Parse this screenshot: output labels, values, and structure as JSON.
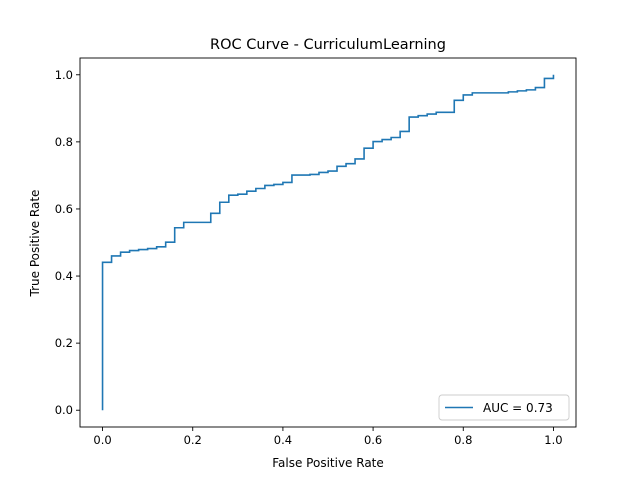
{
  "chart_data": {
    "type": "line",
    "title": "ROC Curve - CurriculumLearning",
    "xlabel": "False Positive Rate",
    "ylabel": "True Positive Rate",
    "xlim": [
      -0.05,
      1.05
    ],
    "ylim": [
      -0.05,
      1.05
    ],
    "xticks": [
      "0.0",
      "0.2",
      "0.4",
      "0.6",
      "0.8",
      "1.0"
    ],
    "yticks": [
      "0.0",
      "0.2",
      "0.4",
      "0.6",
      "0.8",
      "1.0"
    ],
    "grid": false,
    "legend_position": "lower-right",
    "series": [
      {
        "name": "AUC = 0.73",
        "color": "#1f77b4",
        "steps": [
          [
            0.0,
            0.441
          ],
          [
            0.02,
            0.46
          ],
          [
            0.04,
            0.471
          ],
          [
            0.06,
            0.476
          ],
          [
            0.08,
            0.479
          ],
          [
            0.1,
            0.482
          ],
          [
            0.12,
            0.487
          ],
          [
            0.14,
            0.501
          ],
          [
            0.16,
            0.544
          ],
          [
            0.18,
            0.56
          ],
          [
            0.24,
            0.587
          ],
          [
            0.26,
            0.62
          ],
          [
            0.28,
            0.641
          ],
          [
            0.3,
            0.644
          ],
          [
            0.32,
            0.653
          ],
          [
            0.34,
            0.661
          ],
          [
            0.36,
            0.67
          ],
          [
            0.38,
            0.673
          ],
          [
            0.4,
            0.679
          ],
          [
            0.42,
            0.701
          ],
          [
            0.46,
            0.703
          ],
          [
            0.48,
            0.709
          ],
          [
            0.5,
            0.713
          ],
          [
            0.52,
            0.727
          ],
          [
            0.54,
            0.735
          ],
          [
            0.56,
            0.749
          ],
          [
            0.58,
            0.781
          ],
          [
            0.6,
            0.801
          ],
          [
            0.62,
            0.807
          ],
          [
            0.64,
            0.813
          ],
          [
            0.66,
            0.831
          ],
          [
            0.68,
            0.874
          ],
          [
            0.7,
            0.878
          ],
          [
            0.72,
            0.883
          ],
          [
            0.74,
            0.888
          ],
          [
            0.78,
            0.924
          ],
          [
            0.8,
            0.94
          ],
          [
            0.82,
            0.946
          ],
          [
            0.9,
            0.949
          ],
          [
            0.92,
            0.952
          ],
          [
            0.94,
            0.955
          ],
          [
            0.96,
            0.962
          ],
          [
            0.98,
            0.989
          ],
          [
            1.0,
            1.0
          ]
        ]
      }
    ]
  }
}
